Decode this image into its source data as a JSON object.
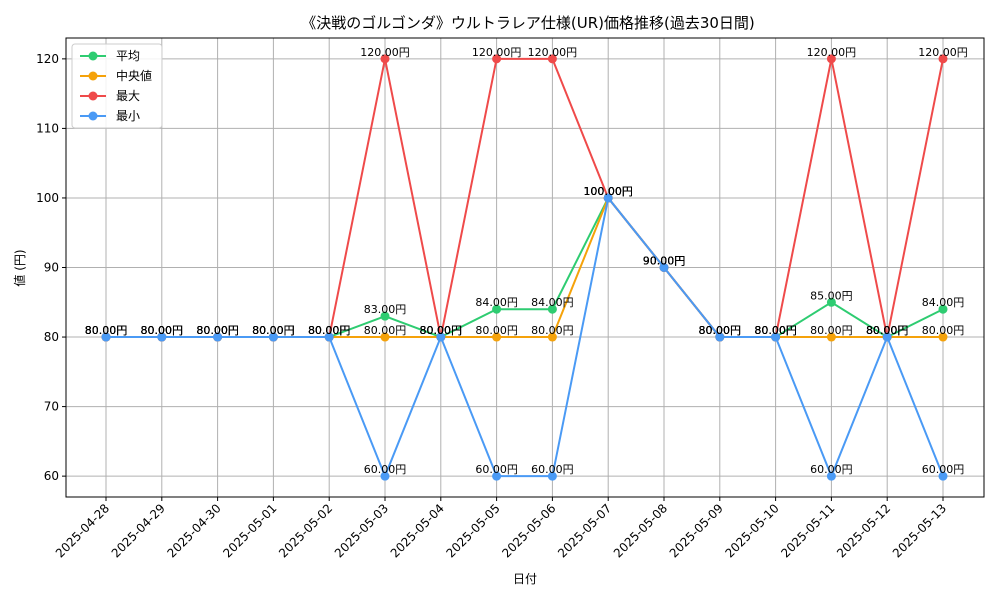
{
  "chart_data": {
    "type": "line",
    "title": "《決戦のゴルゴンダ》ウルトラレア仕様(UR)価格推移(過去30日間)",
    "xlabel": "日付",
    "ylabel": "値 (円)",
    "ylim": [
      57,
      123
    ],
    "yticks": [
      60,
      70,
      80,
      90,
      100,
      110,
      120
    ],
    "grid": true,
    "legend_position": "top-left",
    "categories": [
      "2025-04-28",
      "2025-04-29",
      "2025-04-30",
      "2025-05-01",
      "2025-05-02",
      "2025-05-03",
      "2025-05-04",
      "2025-05-05",
      "2025-05-06",
      "2025-05-07",
      "2025-05-08",
      "2025-05-09",
      "2025-05-10",
      "2025-05-11",
      "2025-05-12",
      "2025-05-13"
    ],
    "series": [
      {
        "name": "平均",
        "color": "#2ecc71",
        "values": [
          80,
          80,
          80,
          80,
          80,
          83,
          80,
          84,
          84,
          100,
          90,
          80,
          80,
          85,
          80,
          84
        ],
        "labels": [
          "80.00円",
          "80.00円",
          "80.00円",
          "80.00円",
          "80.00円",
          "83.00円",
          "80.00円",
          "84.00円",
          "84.00円",
          "100.00円",
          "90.00円",
          "80.00円",
          "80.00円",
          "85.00円",
          "80.00円",
          "84.00円"
        ]
      },
      {
        "name": "中央値",
        "color": "#f5a20a",
        "values": [
          80,
          80,
          80,
          80,
          80,
          80,
          80,
          80,
          80,
          100,
          90,
          80,
          80,
          80,
          80,
          80
        ],
        "labels": [
          "80.00円",
          "80.00円",
          "80.00円",
          "80.00円",
          "80.00円",
          "80.00円",
          "80.00円",
          "80.00円",
          "80.00円",
          "100.00円",
          "90.00円",
          "80.00円",
          "80.00円",
          "80.00円",
          "80.00円",
          "80.00円"
        ]
      },
      {
        "name": "最大",
        "color": "#ef4a4a",
        "values": [
          80,
          80,
          80,
          80,
          80,
          120,
          80,
          120,
          120,
          100,
          90,
          80,
          80,
          120,
          80,
          120
        ],
        "labels": [
          "80.00円",
          "80.00円",
          "80.00円",
          "80.00円",
          "80.00円",
          "120.00円",
          "80.00円",
          "120.00円",
          "120.00円",
          "100.00円",
          "90.00円",
          "80.00円",
          "80.00円",
          "120.00円",
          "80.00円",
          "120.00円"
        ]
      },
      {
        "name": "最小",
        "color": "#4a9af5",
        "values": [
          80,
          80,
          80,
          80,
          80,
          60,
          80,
          60,
          60,
          100,
          90,
          80,
          80,
          60,
          80,
          60
        ],
        "labels": [
          "80.00円",
          "80.00円",
          "80.00円",
          "80.00円",
          "80.00円",
          "60.00円",
          "80.00円",
          "60.00円",
          "60.00円",
          "100.00円",
          "90.00円",
          "80.00円",
          "80.00円",
          "60.00円",
          "80.00円",
          "60.00円"
        ]
      }
    ]
  }
}
